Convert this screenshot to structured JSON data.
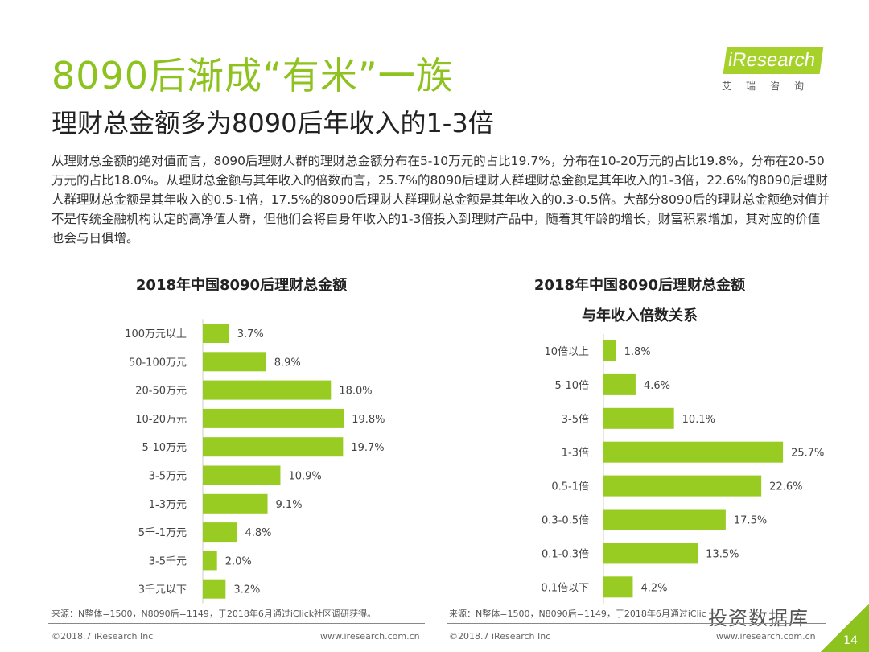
{
  "header": {
    "title": "8090后渐成“有米”一族",
    "subtitle": "理财总金额多为8090后年收入的1-3倍",
    "logo_text": "iResearch",
    "logo_sub": "艾瑞咨询"
  },
  "body": "从理财总金额的绝对值而言，8090后理财人群的理财总金额分布在5-10万元的占比19.7%，分布在10-20万元的占比19.8%，分布在20-50万元的占比18.0%。从理财总金额与其年收入的倍数而言，25.7%的8090后理财人群理财总金额是其年收入的1-3倍，22.6%的8090后理财人群理财总金额是其年收入的0.5-1倍，17.5%的8090后理财人群理财总金额是其年收入的0.3-0.5倍。大部分8090后的理财总金额绝对值并不是传统金融机构认定的高净值人群，但他们会将自身年收入的1-3倍投入到理财产品中，随着其年龄的增长，财富积累增加，其对应的价值也会与日俱增。",
  "colors": {
    "accent": "#8dc21f",
    "bar": "#99cc22"
  },
  "chart_data": [
    {
      "type": "bar",
      "orientation": "horizontal",
      "title": "2018年中国8090后理财总金额",
      "unit": "%",
      "categories": [
        "100万元以上",
        "50-100万元",
        "20-50万元",
        "10-20万元",
        "5-10万元",
        "3-5万元",
        "1-3万元",
        "5千-1万元",
        "3-5千元",
        "3千元以下"
      ],
      "values": [
        3.7,
        8.9,
        18.0,
        19.8,
        19.7,
        10.9,
        9.1,
        4.8,
        2.0,
        3.2
      ]
    },
    {
      "type": "bar",
      "orientation": "horizontal",
      "title": "2018年中国8090后理财总金额\n与年收入倍数关系",
      "unit": "%",
      "categories": [
        "10倍以上",
        "5-10倍",
        "3-5倍",
        "1-3倍",
        "0.5-1倍",
        "0.3-0.5倍",
        "0.1-0.3倍",
        "0.1倍以下"
      ],
      "values": [
        1.8,
        4.6,
        10.1,
        25.7,
        22.6,
        17.5,
        13.5,
        4.2
      ]
    }
  ],
  "footer": {
    "source": "来源：N整体=1500，N8090后=1149，于2018年6月通过iClick社区调研获得。",
    "source_right": "来源：N整体=1500，N8090后=1149，于2018年6月通过iClick社区调研获得。",
    "copyright": "©2018.7 iResearch Inc",
    "url": "www.iresearch.com.cn",
    "page": "14",
    "watermark": "投资数据库"
  }
}
